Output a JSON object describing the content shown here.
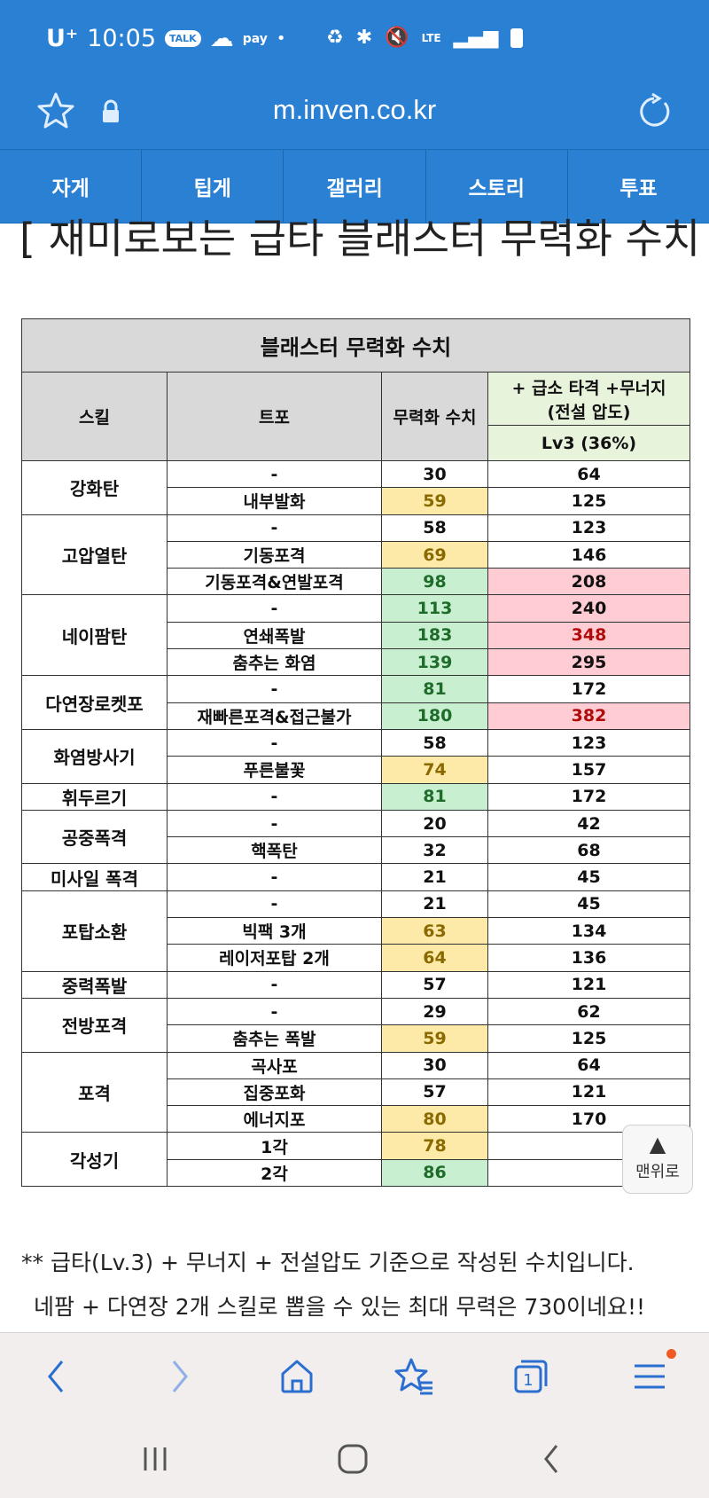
{
  "status_bar": {
    "carrier": "U⁺",
    "time": "10:05",
    "talk_badge": "TALK",
    "pay_badge": "pay",
    "network": "LTE",
    "icons": [
      "chat-icon",
      "cloud-icon",
      "recycle-icon",
      "bluetooth-icon",
      "mute-icon",
      "signal-icon",
      "battery-icon"
    ]
  },
  "browser": {
    "url": "m.inven.co.kr",
    "nav_tabs": [
      "자게",
      "팁게",
      "갤러리",
      "스토리",
      "투표"
    ]
  },
  "article": {
    "heading": "[ 재미로보는 급타 블래스터 무력화 수치 ]",
    "table": {
      "title": "블래스터 무력화 수치",
      "col_skill": "스킬",
      "col_tripod": "트포",
      "col_value": "무력화 수치",
      "col_boost_line1": "+ 급소 타격 +무너지",
      "col_boost_line2": "(전설 압도)",
      "col_boost_sub": "Lv3 (36%)",
      "groups": [
        {
          "skill": "강화탄",
          "rows": [
            {
              "tripod": "-",
              "value": "30",
              "boost": "64"
            },
            {
              "tripod": "내부발화",
              "value": "59",
              "boost": "125"
            }
          ]
        },
        {
          "skill": "고압열탄",
          "rows": [
            {
              "tripod": "-",
              "value": "58",
              "boost": "123"
            },
            {
              "tripod": "기동포격",
              "value": "69",
              "boost": "146"
            },
            {
              "tripod": "기동포격&연발포격",
              "value": "98",
              "boost": "208"
            }
          ]
        },
        {
          "skill": "네이팜탄",
          "rows": [
            {
              "tripod": "-",
              "value": "113",
              "boost": "240"
            },
            {
              "tripod": "연쇄폭발",
              "value": "183",
              "boost": "348"
            },
            {
              "tripod": "춤추는 화염",
              "value": "139",
              "boost": "295"
            }
          ]
        },
        {
          "skill": "다연장로켓포",
          "rows": [
            {
              "tripod": "-",
              "value": "81",
              "boost": "172"
            },
            {
              "tripod": "재빠른포격&접근불가",
              "value": "180",
              "boost": "382"
            }
          ]
        },
        {
          "skill": "화염방사기",
          "rows": [
            {
              "tripod": "-",
              "value": "58",
              "boost": "123"
            },
            {
              "tripod": "푸른불꽃",
              "value": "74",
              "boost": "157"
            }
          ]
        },
        {
          "skill": "휘두르기",
          "rows": [
            {
              "tripod": "-",
              "value": "81",
              "boost": "172"
            }
          ]
        },
        {
          "skill": "공중폭격",
          "rows": [
            {
              "tripod": "-",
              "value": "20",
              "boost": "42"
            },
            {
              "tripod": "핵폭탄",
              "value": "32",
              "boost": "68"
            }
          ]
        },
        {
          "skill": "미사일 폭격",
          "rows": [
            {
              "tripod": "-",
              "value": "21",
              "boost": "45"
            }
          ]
        },
        {
          "skill": "포탑소환",
          "rows": [
            {
              "tripod": "-",
              "value": "21",
              "boost": "45"
            },
            {
              "tripod": "빅팩 3개",
              "value": "63",
              "boost": "134"
            },
            {
              "tripod": "레이저포탑 2개",
              "value": "64",
              "boost": "136"
            }
          ]
        },
        {
          "skill": "중력폭발",
          "rows": [
            {
              "tripod": "-",
              "value": "57",
              "boost": "121"
            }
          ]
        },
        {
          "skill": "전방포격",
          "rows": [
            {
              "tripod": "-",
              "value": "29",
              "boost": "62"
            },
            {
              "tripod": "춤추는 폭발",
              "value": "59",
              "boost": "125"
            }
          ]
        },
        {
          "skill": "포격",
          "rows": [
            {
              "tripod": "곡사포",
              "value": "30",
              "boost": "64"
            },
            {
              "tripod": "집중포화",
              "value": "57",
              "boost": "121"
            },
            {
              "tripod": "에너지포",
              "value": "80",
              "boost": "170"
            }
          ]
        },
        {
          "skill": "각성기",
          "rows": [
            {
              "tripod": "1각",
              "value": "78",
              "boost": ""
            },
            {
              "tripod": "2각",
              "value": "86",
              "boost": ""
            }
          ]
        }
      ]
    },
    "note_line1": "** 급타(Lv.3) + 무너지 + 전설압도 기준으로 작성된 수치입니다.",
    "note_line2": "네팜 + 다연장 2개 스킬로 뽑을 수 있는 최대 무력은 730이네요!!"
  },
  "top_button": {
    "arrow": "▲",
    "label": "맨위로"
  },
  "toolbar": {
    "tab_count": "1",
    "buttons": [
      "back-icon",
      "forward-icon",
      "home-icon",
      "bookmarks-icon",
      "tabs-icon",
      "menu-icon"
    ]
  },
  "system_nav": {
    "buttons": [
      "recent-apps-icon",
      "home-circle-icon",
      "system-back-icon"
    ]
  },
  "colors": {
    "brand_blue": "#2a80d3",
    "cell_yellow": "#fde9a8",
    "cell_green": "#c8efd0",
    "cell_pink": "#ffccd3",
    "text_red": "#b00a0a",
    "badge_orange": "#f05a22"
  }
}
